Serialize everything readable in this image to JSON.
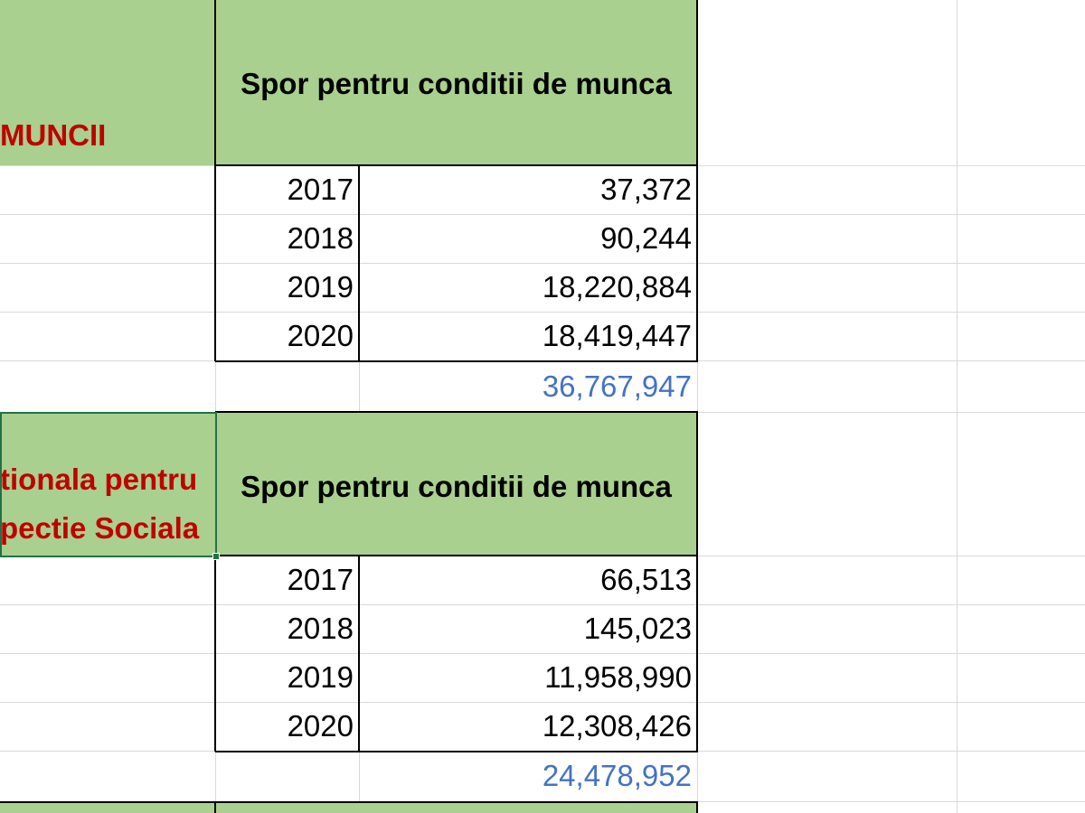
{
  "blocks": [
    {
      "org_label_lines": [
        "MUNCII"
      ],
      "header": "Spor pentru  conditii de munca",
      "rows": [
        {
          "year": "2017",
          "value": "37,372"
        },
        {
          "year": "2018",
          "value": "90,244"
        },
        {
          "year": "2019",
          "value": "18,220,884"
        },
        {
          "year": "2020",
          "value": "18,419,447"
        }
      ],
      "total": "36,767,947"
    },
    {
      "org_label_lines": [
        "tionala pentru",
        "pectie Sociala"
      ],
      "header": "Spor pentru  conditii de munca",
      "rows": [
        {
          "year": "2017",
          "value": "66,513"
        },
        {
          "year": "2018",
          "value": "145,023"
        },
        {
          "year": "2019",
          "value": "11,958,990"
        },
        {
          "year": "2020",
          "value": "12,308,426"
        }
      ],
      "total": "24,478,952"
    }
  ],
  "colors": {
    "header_fill": "#a9d08e",
    "org_label_text": "#c00000",
    "total_text": "#4472c4",
    "selection_border": "#217346",
    "gridline": "#d9d9d9"
  }
}
